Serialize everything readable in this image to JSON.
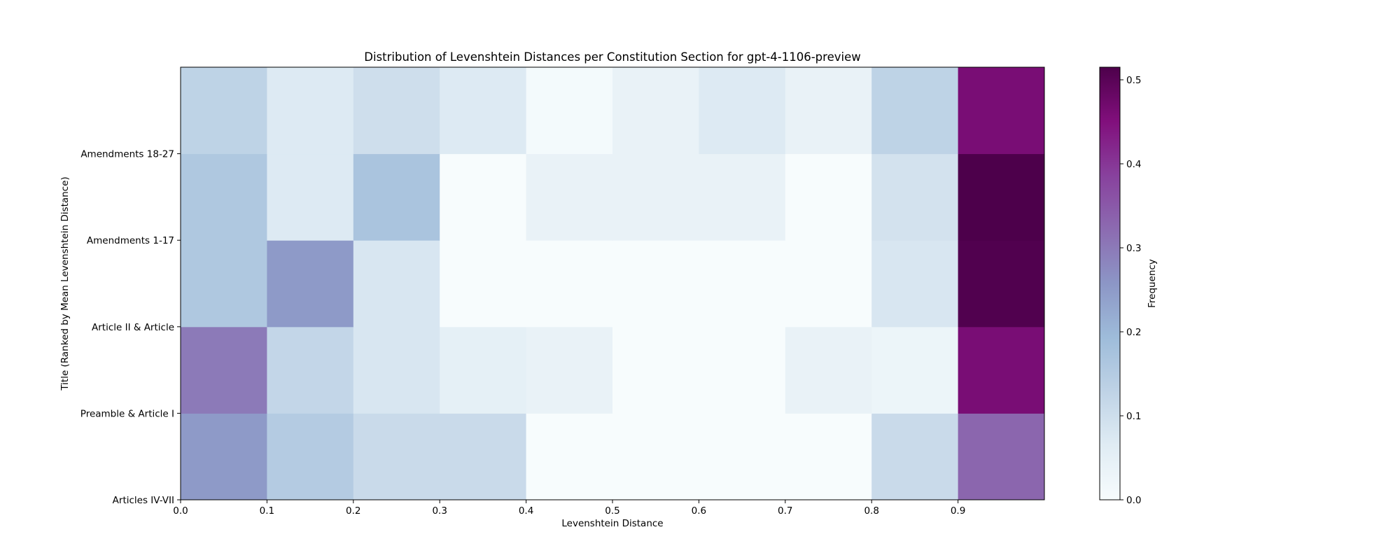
{
  "chart_data": {
    "type": "heatmap",
    "title": "Distribution of Levenshtein Distances per Constitution Section for gpt-4-1106-preview",
    "xlabel": "Levenshtein Distance",
    "ylabel": "Title (Ranked by Mean Levenshtein Distance)",
    "colorbar_label": "Frequency",
    "colormap": "BuPu",
    "x_bins": [
      0.0,
      0.1,
      0.2,
      0.3,
      0.4,
      0.5,
      0.6,
      0.7,
      0.8,
      0.9,
      1.0
    ],
    "xlim": [
      0.0,
      1.0
    ],
    "x_ticks": [
      "0.0",
      "0.1",
      "0.2",
      "0.3",
      "0.4",
      "0.5",
      "0.6",
      "0.7",
      "0.8",
      "0.9"
    ],
    "y_tick_labels": [
      "Articles IV-VII",
      "Preamble & Article I",
      "Article II & Article",
      "Amendments 1-17",
      "Amendments 18-27"
    ],
    "rows": [
      {
        "values": [
          0.25,
          0.15,
          0.11,
          0.11,
          0.0,
          0.0,
          0.0,
          0.0,
          0.11,
          0.33
        ]
      },
      {
        "values": [
          0.3,
          0.12,
          0.08,
          0.05,
          0.04,
          0.0,
          0.0,
          0.04,
          0.03,
          0.46
        ]
      },
      {
        "values": [
          0.16,
          0.25,
          0.08,
          0.0,
          0.0,
          0.0,
          0.0,
          0.0,
          0.08,
          0.51
        ]
      },
      {
        "values": [
          0.16,
          0.07,
          0.17,
          0.0,
          0.04,
          0.04,
          0.04,
          0.0,
          0.09,
          0.52
        ]
      },
      {
        "values": [
          0.13,
          0.07,
          0.1,
          0.07,
          0.01,
          0.04,
          0.07,
          0.04,
          0.13,
          0.46
        ]
      }
    ],
    "vmin": 0.0,
    "vmax": 0.515,
    "colorbar_ticks": [
      "0.0",
      "0.1",
      "0.2",
      "0.3",
      "0.4",
      "0.5"
    ]
  }
}
